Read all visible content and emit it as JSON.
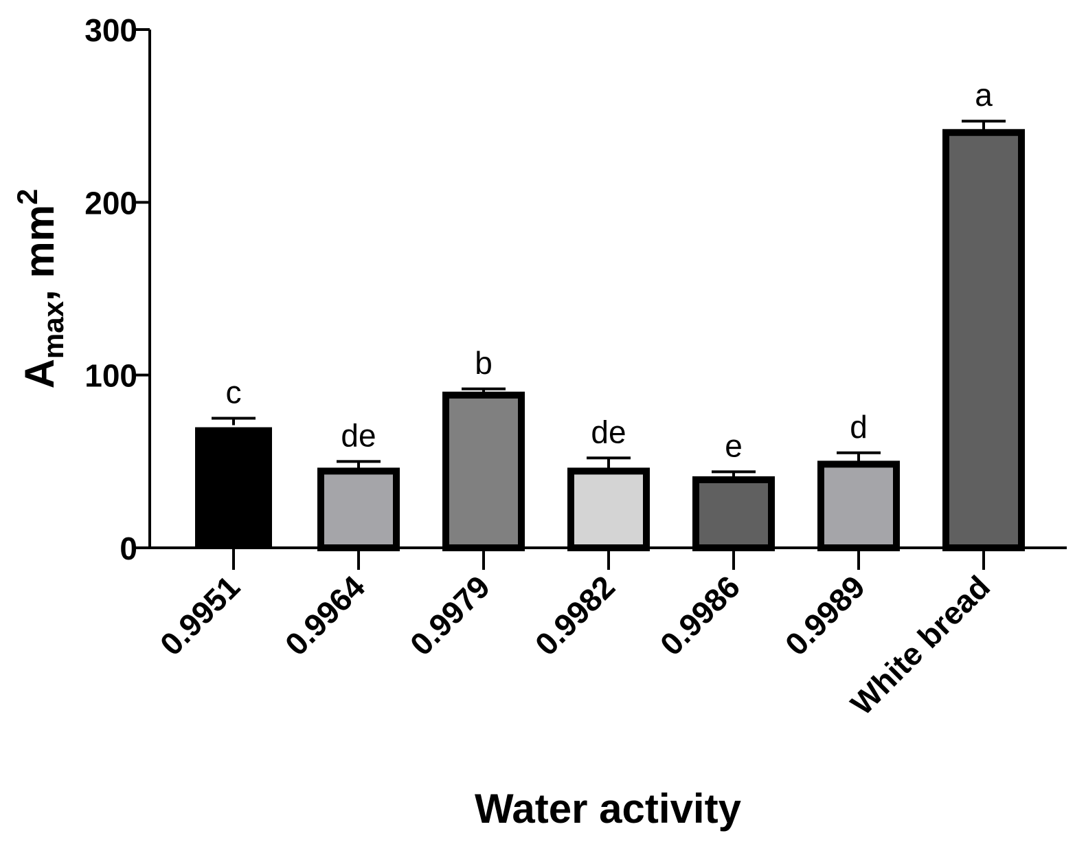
{
  "chart_data": {
    "type": "bar",
    "title": "",
    "xlabel": "Water activity",
    "ylabel": {
      "main": "A",
      "subscript": "max",
      "unit": ", mm",
      "superscript": "2"
    },
    "categories": [
      "0.9951",
      "0.9964",
      "0.9979",
      "0.9982",
      "0.9986",
      "0.9989",
      "White bread"
    ],
    "values": [
      71,
      46,
      90,
      46,
      41,
      50,
      242
    ],
    "errors": [
      4,
      4,
      2,
      6,
      3,
      5,
      5
    ],
    "significance": [
      "c",
      "de",
      "b",
      "de",
      "e",
      "d",
      "a"
    ],
    "bar_colors": [
      "#000000",
      "#a5a5a9",
      "#808080",
      "#d4d4d4",
      "#606060",
      "#a5a5a9",
      "#606060"
    ],
    "yticks": [
      "0",
      "100",
      "200",
      "300"
    ],
    "ylim": [
      0,
      300
    ],
    "grid": false
  }
}
